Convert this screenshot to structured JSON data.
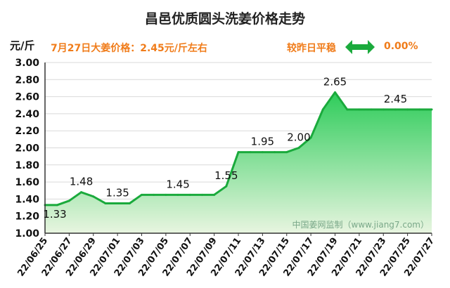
{
  "title": "昌邑优质圆头洗姜价格走势",
  "unit_label": "元/斤",
  "price_note": "7月27日大姜价格：2.45元/斤左右",
  "comparison": {
    "label": "较昨日平稳",
    "icon": "double-arrow-icon",
    "value": "0.00%",
    "accent_color": "#f07c1a",
    "icon_color": "#1aaa3c"
  },
  "watermark": "中国姜网监制（www.jiang7.com）",
  "chart_data": {
    "type": "area",
    "title": "昌邑优质圆头洗姜价格走势",
    "ylabel": "元/斤",
    "ylim": [
      1.0,
      3.0
    ],
    "yticks": [
      "1.00",
      "1.20",
      "1.40",
      "1.60",
      "1.80",
      "2.00",
      "2.20",
      "2.40",
      "2.60",
      "2.80",
      "3.00"
    ],
    "xticks": [
      "22/06/25",
      "22/06/27",
      "22/06/29",
      "22/07/01",
      "22/07/03",
      "22/07/05",
      "22/07/07",
      "22/07/09",
      "22/07/11",
      "22/07/13",
      "22/07/15",
      "22/07/17",
      "22/07/19",
      "22/07/21",
      "22/07/23",
      "22/07/25",
      "22/07/27"
    ],
    "x": [
      "22/06/25",
      "22/06/26",
      "22/06/27",
      "22/06/28",
      "22/06/29",
      "22/06/30",
      "22/07/01",
      "22/07/02",
      "22/07/03",
      "22/07/04",
      "22/07/05",
      "22/07/06",
      "22/07/07",
      "22/07/08",
      "22/07/09",
      "22/07/10",
      "22/07/11",
      "22/07/12",
      "22/07/13",
      "22/07/14",
      "22/07/15",
      "22/07/16",
      "22/07/17",
      "22/07/18",
      "22/07/19",
      "22/07/20",
      "22/07/21",
      "22/07/22",
      "22/07/23",
      "22/07/24",
      "22/07/25",
      "22/07/26",
      "22/07/27"
    ],
    "values": [
      1.33,
      1.33,
      1.38,
      1.48,
      1.43,
      1.35,
      1.35,
      1.35,
      1.45,
      1.45,
      1.45,
      1.45,
      1.45,
      1.45,
      1.45,
      1.55,
      1.95,
      1.95,
      1.95,
      1.95,
      1.95,
      2.0,
      2.12,
      2.45,
      2.65,
      2.45,
      2.45,
      2.45,
      2.45,
      2.45,
      2.45,
      2.45,
      2.45
    ],
    "data_labels": [
      {
        "x": "22/06/25",
        "text": "1.33"
      },
      {
        "x": "22/06/28",
        "text": "1.48"
      },
      {
        "x": "22/07/01",
        "text": "1.35"
      },
      {
        "x": "22/07/06",
        "text": "1.45"
      },
      {
        "x": "22/07/10",
        "text": "1.55"
      },
      {
        "x": "22/07/13",
        "text": "1.95"
      },
      {
        "x": "22/07/16",
        "text": "2.00"
      },
      {
        "x": "22/07/19",
        "text": "2.65"
      },
      {
        "x": "22/07/24",
        "text": "2.45"
      }
    ],
    "grid": true,
    "line_color": "#1aaa3c",
    "fill_top_color": "#2ecc5a",
    "fill_bottom_color": "#e8f5e0"
  }
}
